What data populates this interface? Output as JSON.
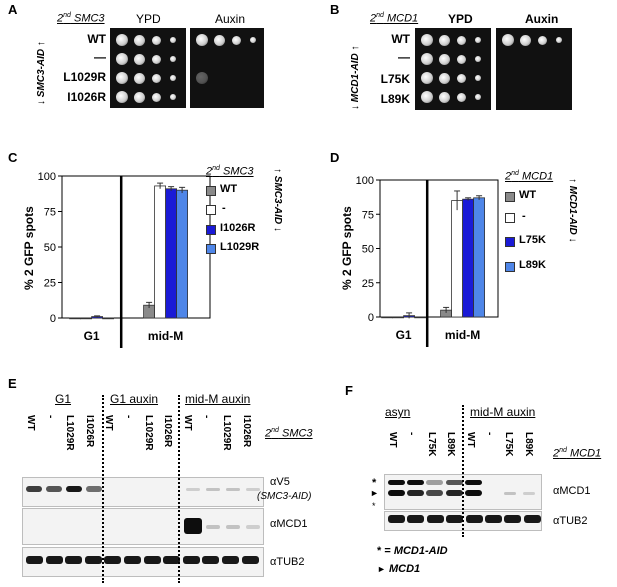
{
  "panels": {
    "A": {
      "label": "A",
      "strain_axis": "SMC3-AID",
      "second_label_prefix": "2",
      "second_label_sup": "nd",
      "second_label_gene": "SMC3",
      "col_headers": [
        "YPD",
        "Auxin"
      ],
      "rows": [
        "WT",
        "—",
        "L1029R",
        "I1026R"
      ]
    },
    "B": {
      "label": "B",
      "strain_axis": "MCD1-AID",
      "second_label_prefix": "2",
      "second_label_sup": "nd",
      "second_label_gene": "MCD1",
      "col_headers": [
        "YPD",
        "Auxin"
      ],
      "rows": [
        "WT",
        "—",
        "L75K",
        "L89K"
      ]
    },
    "C": {
      "label": "C",
      "ylabel": "% 2 GFP spots",
      "strain_axis": "SMC3-AID",
      "second_label_prefix": "2",
      "second_label_sup": "nd",
      "second_label_gene": "SMC3",
      "legend": [
        "WT",
        "-",
        "I1026R",
        "L1029R"
      ]
    },
    "D": {
      "label": "D",
      "ylabel": "% 2 GFP spots",
      "strain_axis": "MCD1-AID",
      "second_label_prefix": "2",
      "second_label_sup": "nd",
      "second_label_gene": "MCD1",
      "legend": [
        "WT",
        "-",
        "L75K",
        "L89K"
      ]
    },
    "E": {
      "label": "E",
      "groups": [
        "G1",
        "G1 auxin",
        "mid-M auxin"
      ],
      "lanes": [
        "WT",
        "-",
        "L1029R",
        "I1026R",
        "WT",
        "-",
        "L1029R",
        "I1026R",
        "WT",
        "-",
        "L1029R",
        "I1026R"
      ],
      "second_label_prefix": "2",
      "second_label_sup": "nd",
      "second_label_gene": "SMC3",
      "antibodies": [
        "αV5",
        "αMCD1",
        "αTUB2"
      ],
      "v5_note": "(SMC3-AID)"
    },
    "F": {
      "label": "F",
      "groups": [
        "asyn",
        "mid-M auxin"
      ],
      "lanes": [
        "WT",
        "-",
        "L75K",
        "L89K",
        "WT",
        "-",
        "L75K",
        "L89K"
      ],
      "second_label_prefix": "2",
      "second_label_sup": "nd",
      "second_label_gene": "MCD1",
      "antibodies": [
        "αMCD1",
        "αTUB2"
      ],
      "key": [
        {
          "symbol": "*",
          "sep": " = ",
          "text": "MCD1-AID"
        },
        {
          "symbol": "►",
          "sep": " ",
          "text": "MCD1"
        }
      ],
      "marks": [
        "*",
        "►",
        "*"
      ]
    }
  },
  "chart_data": [
    {
      "type": "bar",
      "panel": "C",
      "ylabel": "% 2 GFP spots",
      "ylim": [
        0,
        100
      ],
      "yticks": [
        0,
        25,
        50,
        75,
        100
      ],
      "categories": [
        "G1",
        "mid-M"
      ],
      "series": [
        {
          "name": "WT",
          "color": "#8a8a8a",
          "values": [
            0,
            9
          ],
          "err": [
            0,
            2
          ]
        },
        {
          "name": "-",
          "color": "#ffffff",
          "values": [
            0,
            93
          ],
          "err": [
            0,
            2
          ]
        },
        {
          "name": "I1026R",
          "color": "#1a1ad6",
          "values": [
            1,
            91
          ],
          "err": [
            0.5,
            1.5
          ]
        },
        {
          "name": "L1029R",
          "color": "#4f86e8",
          "values": [
            0,
            90
          ],
          "err": [
            0,
            2
          ]
        }
      ]
    },
    {
      "type": "bar",
      "panel": "D",
      "ylabel": "% 2 GFP spots",
      "ylim": [
        0,
        100
      ],
      "yticks": [
        0,
        25,
        50,
        75,
        100
      ],
      "categories": [
        "G1",
        "mid-M"
      ],
      "series": [
        {
          "name": "WT",
          "color": "#8a8a8a",
          "values": [
            0,
            5
          ],
          "err": [
            0,
            2
          ]
        },
        {
          "name": "-",
          "color": "#ffffff",
          "values": [
            0,
            85
          ],
          "err": [
            0,
            7
          ]
        },
        {
          "name": "L75K",
          "color": "#1a1ad6",
          "values": [
            1,
            86
          ],
          "err": [
            2,
            1
          ]
        },
        {
          "name": "L89K",
          "color": "#4f86e8",
          "values": [
            0,
            87
          ],
          "err": [
            0,
            1.5
          ]
        }
      ]
    }
  ]
}
